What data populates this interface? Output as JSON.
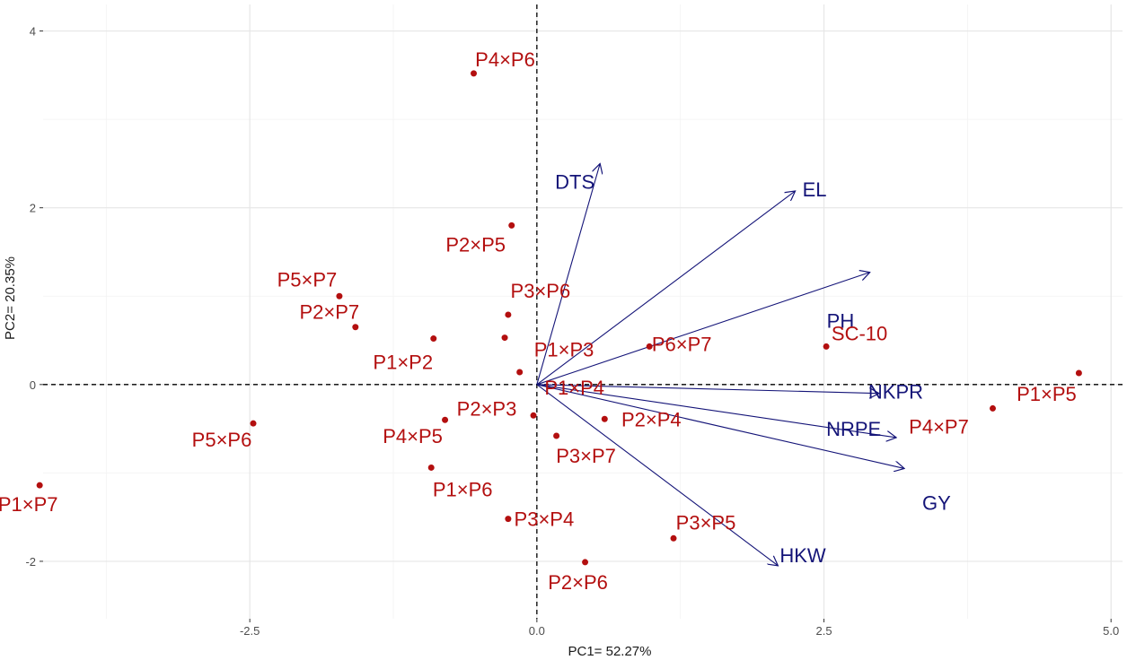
{
  "chart_data": {
    "type": "scatter",
    "subtype": "pca-biplot",
    "title": "",
    "xlabel": "PC1=  52.27%",
    "ylabel": "PC2= 20.35%",
    "xlim": [
      -4.3,
      5.1
    ],
    "ylim": [
      -2.65,
      4.3
    ],
    "x_ticks": [
      -2.5,
      0.0,
      2.5,
      5.0
    ],
    "x_tick_labels": [
      "-2.5",
      "0.0",
      "2.5",
      "5.0"
    ],
    "y_ticks": [
      -2,
      0,
      2,
      4
    ],
    "y_tick_labels": [
      "-2",
      "0",
      "2",
      "4"
    ],
    "reference_lines": [
      "x=0 dashed",
      "y=0 dashed"
    ],
    "grid": true,
    "genotypes": [
      {
        "label": "P4×P6",
        "x": -0.55,
        "y": 3.52
      },
      {
        "label": "P2×P5",
        "x": -0.22,
        "y": 1.8
      },
      {
        "label": "P5×P7",
        "x": -1.72,
        "y": 1.0
      },
      {
        "label": "P3×P6",
        "x": -0.25,
        "y": 0.79
      },
      {
        "label": "P2×P7",
        "x": -1.58,
        "y": 0.65
      },
      {
        "label": "P1×P2",
        "x": -0.9,
        "y": 0.52
      },
      {
        "label": "P6×P7",
        "x": 0.98,
        "y": 0.43
      },
      {
        "label": "SC-10",
        "x": 2.52,
        "y": 0.43
      },
      {
        "label": "P1×P3",
        "x": -0.28,
        "y": 0.53
      },
      {
        "label": "P1×P4",
        "x": -0.15,
        "y": 0.14
      },
      {
        "label": "P1×P5",
        "x": 4.72,
        "y": 0.13
      },
      {
        "label": "P4×P7",
        "x": 3.97,
        "y": -0.27
      },
      {
        "label": "P2×P3",
        "x": -0.03,
        "y": -0.35
      },
      {
        "label": "P2×P4",
        "x": 0.59,
        "y": -0.39
      },
      {
        "label": "P5×P6",
        "x": -2.47,
        "y": -0.44
      },
      {
        "label": "P4×P5",
        "x": -0.8,
        "y": -0.4
      },
      {
        "label": "P3×P7",
        "x": 0.17,
        "y": -0.58
      },
      {
        "label": "P1×P6",
        "x": -0.92,
        "y": -0.94
      },
      {
        "label": "P1×P7",
        "x": -4.33,
        "y": -1.14
      },
      {
        "label": "P3×P4",
        "x": -0.25,
        "y": -1.52
      },
      {
        "label": "P3×P5",
        "x": 1.19,
        "y": -1.74
      },
      {
        "label": "P2×P6",
        "x": 0.42,
        "y": -2.01
      }
    ],
    "loadings": [
      {
        "trait": "DTS",
        "x": 0.55,
        "y": 2.5
      },
      {
        "trait": "EL",
        "x": 2.25,
        "y": 2.19
      },
      {
        "trait": "PH",
        "x": 2.9,
        "y": 1.27
      },
      {
        "trait": "NKPR",
        "x": 2.98,
        "y": -0.1
      },
      {
        "trait": "NRPE",
        "x": 3.13,
        "y": -0.6
      },
      {
        "trait": "GY",
        "x": 3.2,
        "y": -0.95
      },
      {
        "trait": "HKW",
        "x": 2.1,
        "y": -2.05
      }
    ],
    "colors": {
      "genotype": "#b30f0f",
      "loading": "#141478"
    }
  }
}
